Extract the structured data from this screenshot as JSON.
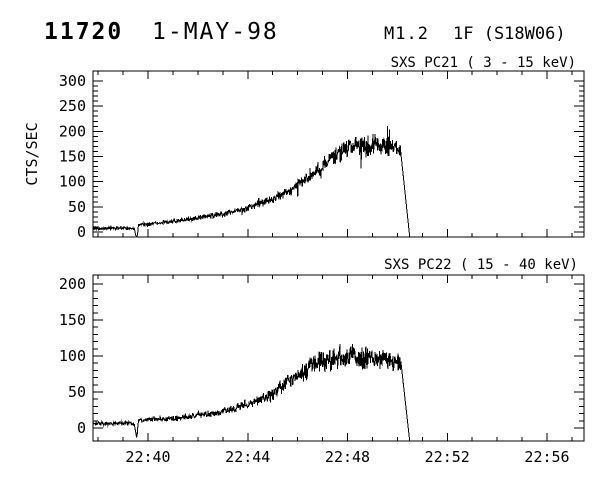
{
  "header": {
    "event_number": "11720",
    "date": "1-MAY-98",
    "goes_class": "M1.2",
    "importance_location": "1F (S18W06)"
  },
  "colors": {
    "background": "#ffffff",
    "foreground": "#000000"
  },
  "chart_data": [
    {
      "type": "line",
      "title": "SXS PC21  (  3 - 15 keV)",
      "ylabel": "CTS/SEC",
      "ylim": [
        0,
        300
      ],
      "y_major_ticks": [
        0,
        50,
        100,
        150,
        200,
        250,
        300
      ],
      "y_tick_labels": [
        "0",
        "50",
        "100",
        "150",
        "200",
        "250",
        "300"
      ],
      "y_minor_step": 10,
      "grid": false,
      "x_axis": {
        "unit": "minutes after 22:00 UT, 1-MAY-98",
        "range_min": [
          37.79,
          57.48
        ],
        "major_ticks_min": [
          40,
          44,
          48,
          52,
          56
        ],
        "labels": [
          "22:40",
          "22:44",
          "22:48",
          "22:52",
          "22:56"
        ],
        "minor_step_min": 1,
        "show_labels": false
      },
      "series": [
        {
          "name": "SXS PC21 counts",
          "data_end_t": 50.5,
          "envelope_t_value": [
            [
              37.79,
              7
            ],
            [
              38.6,
              7
            ],
            [
              39.2,
              8
            ],
            [
              39.45,
              6
            ],
            [
              39.55,
              -14
            ],
            [
              39.62,
              14
            ],
            [
              40.0,
              16
            ],
            [
              40.5,
              18
            ],
            [
              41.0,
              21
            ],
            [
              41.5,
              24
            ],
            [
              42.0,
              28
            ],
            [
              42.5,
              32
            ],
            [
              43.0,
              35
            ],
            [
              43.5,
              41
            ],
            [
              44.0,
              48
            ],
            [
              44.5,
              57
            ],
            [
              45.0,
              66
            ],
            [
              45.5,
              78
            ],
            [
              46.0,
              92
            ],
            [
              46.5,
              110
            ],
            [
              47.0,
              131
            ],
            [
              47.4,
              150
            ],
            [
              47.8,
              161
            ],
            [
              48.2,
              169
            ],
            [
              48.6,
              173
            ],
            [
              49.0,
              171
            ],
            [
              49.4,
              172
            ],
            [
              49.8,
              169
            ],
            [
              50.12,
              166
            ],
            [
              50.5,
              -12
            ]
          ],
          "noise": {
            "base": 2.5,
            "frac": 0.13,
            "spike_prob": 0.05,
            "spike_mult": 2.2,
            "seed": 42,
            "noise_end_t": 50.12
          }
        }
      ]
    },
    {
      "type": "line",
      "title": "SXS PC22  ( 15 - 40 keV)",
      "ylabel": "",
      "ylim": [
        0,
        200
      ],
      "y_major_ticks": [
        0,
        50,
        100,
        150,
        200
      ],
      "y_tick_labels": [
        "0",
        "50",
        "100",
        "150",
        "200"
      ],
      "y_minor_step": 10,
      "grid": false,
      "x_axis": {
        "unit": "minutes after 22:00 UT, 1-MAY-98",
        "range_min": [
          37.79,
          57.48
        ],
        "major_ticks_min": [
          40,
          44,
          48,
          52,
          56
        ],
        "labels": [
          "22:40",
          "22:44",
          "22:48",
          "22:52",
          "22:56"
        ],
        "minor_step_min": 1,
        "show_labels": true
      },
      "series": [
        {
          "name": "SXS PC22 counts",
          "data_end_t": 50.5,
          "envelope_t_value": [
            [
              37.79,
              6
            ],
            [
              38.6,
              6
            ],
            [
              39.2,
              7
            ],
            [
              39.45,
              5
            ],
            [
              39.55,
              -14
            ],
            [
              39.62,
              11
            ],
            [
              40.0,
              12
            ],
            [
              40.5,
              12
            ],
            [
              41.0,
              13
            ],
            [
              41.5,
              15
            ],
            [
              42.0,
              18
            ],
            [
              42.5,
              20
            ],
            [
              43.0,
              23
            ],
            [
              43.5,
              27
            ],
            [
              44.0,
              32
            ],
            [
              44.5,
              39
            ],
            [
              45.0,
              48
            ],
            [
              45.5,
              61
            ],
            [
              46.0,
              73
            ],
            [
              46.5,
              85
            ],
            [
              47.0,
              93
            ],
            [
              47.5,
              97
            ],
            [
              48.0,
              99
            ],
            [
              48.5,
              98
            ],
            [
              49.0,
              96
            ],
            [
              49.5,
              95
            ],
            [
              50.0,
              92
            ],
            [
              50.15,
              89
            ],
            [
              50.5,
              -20
            ]
          ],
          "noise": {
            "base": 2.0,
            "frac": 0.17,
            "spike_prob": 0.06,
            "spike_mult": 1.8,
            "seed": 1337,
            "noise_end_t": 50.15
          }
        }
      ]
    }
  ]
}
